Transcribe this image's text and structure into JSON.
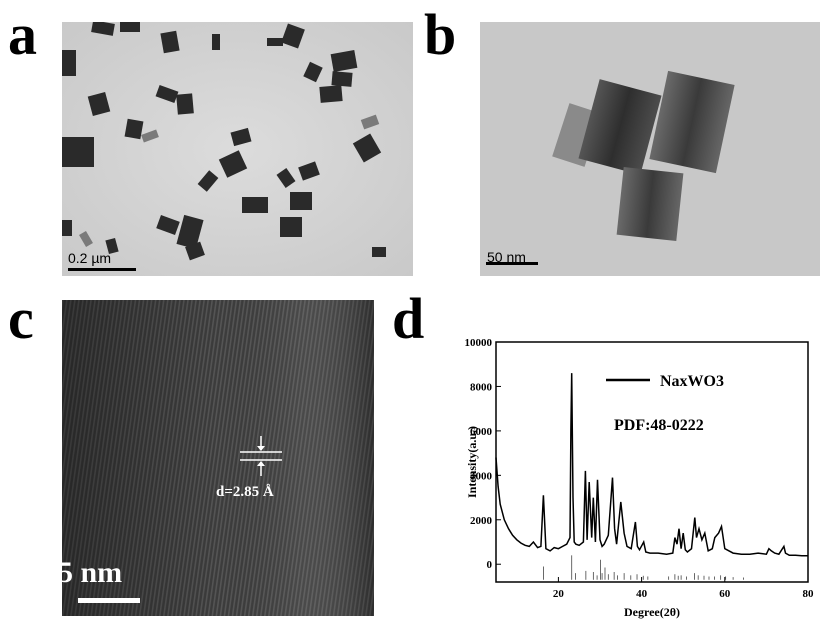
{
  "panels": {
    "a": {
      "letter": "a",
      "scale_label": "0.2 µm"
    },
    "b": {
      "letter": "b",
      "scale_label": "50 nm"
    },
    "c": {
      "letter": "c",
      "scale_label": "5 nm",
      "d_spacing_label": "d=2.85 Å"
    },
    "d": {
      "letter": "d"
    }
  },
  "colors": {
    "line": "#000000",
    "tem_bg_a": "#d4d4d4",
    "tem_bg_b": "#c6c6c6",
    "hrtem_bg": "#3e3e3e"
  },
  "chart_data": {
    "type": "line",
    "title": "",
    "xlabel": "Degree(2θ)",
    "ylabel": "Intensity(a.u.)",
    "xlim": [
      5,
      80
    ],
    "ylim": [
      -800,
      10000
    ],
    "xticks": [
      20,
      40,
      60,
      80
    ],
    "yticks": [
      0,
      2000,
      4000,
      6000,
      8000,
      10000
    ],
    "legend": {
      "label": "NaxWO3",
      "position": "top-right"
    },
    "annotation": "PDF:48-0222",
    "series": [
      {
        "name": "NaxWO3",
        "x": [
          5,
          5.5,
          6,
          7,
          8,
          9,
          10,
          11,
          12,
          13,
          14,
          15,
          15.8,
          16.4,
          17.0,
          18,
          19,
          20,
          21,
          22,
          22.8,
          23.0,
          23.2,
          23.5,
          23.8,
          24.2,
          25,
          26,
          26.5,
          26.9,
          27.4,
          28,
          28.4,
          28.9,
          29.4,
          30,
          30.5,
          31,
          32,
          33,
          33.5,
          34,
          35,
          35.8,
          36.5,
          37.5,
          38.5,
          39,
          39.5,
          40.5,
          41,
          42,
          44,
          46,
          47.5,
          48,
          48.5,
          49,
          49.5,
          50,
          50.5,
          51,
          52,
          52.8,
          53.2,
          53.8,
          54.5,
          55.2,
          56,
          57,
          57.6,
          58.5,
          59.2,
          60,
          62,
          64,
          66,
          68,
          70,
          70.6,
          71.2,
          72,
          73,
          74.2,
          74.6,
          75.5,
          77,
          78.5,
          80
        ],
        "y": [
          4800,
          3500,
          2700,
          2000,
          1600,
          1300,
          1100,
          950,
          850,
          800,
          1000,
          750,
          800,
          3100,
          700,
          600,
          750,
          700,
          800,
          900,
          1200,
          6100,
          8600,
          3000,
          1000,
          900,
          850,
          1000,
          4200,
          1100,
          3700,
          1200,
          3000,
          1000,
          3800,
          1100,
          800,
          900,
          1300,
          3900,
          1600,
          900,
          2800,
          1400,
          800,
          700,
          1900,
          800,
          650,
          1000,
          550,
          500,
          500,
          450,
          500,
          1200,
          900,
          1600,
          700,
          1400,
          650,
          550,
          700,
          2100,
          1200,
          1600,
          1100,
          1400,
          600,
          700,
          1200,
          1400,
          1700,
          700,
          500,
          450,
          450,
          500,
          450,
          700,
          600,
          500,
          450,
          800,
          500,
          400,
          400,
          380,
          380
        ]
      }
    ],
    "reference_sticks": {
      "x": [
        16.4,
        23.2,
        24.1,
        26.6,
        28.4,
        29.3,
        30.1,
        30.5,
        31.2,
        32.0,
        33.4,
        34.2,
        35.8,
        37.4,
        38.9,
        40.4,
        41.5,
        46.5,
        48.0,
        48.8,
        49.5,
        50.8,
        52.7,
        53.6,
        55.0,
        56.2,
        57.5,
        59.0,
        60.2,
        62.0,
        64.5
      ],
      "y": [
        600,
        1100,
        300,
        400,
        350,
        200,
        900,
        300,
        550,
        250,
        350,
        200,
        300,
        200,
        250,
        180,
        150,
        150,
        250,
        180,
        200,
        150,
        300,
        200,
        180,
        150,
        150,
        200,
        150,
        120,
        100
      ]
    }
  }
}
